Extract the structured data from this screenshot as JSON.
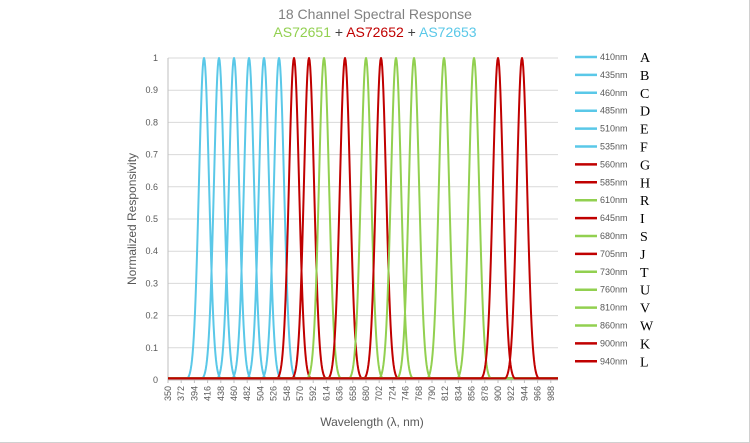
{
  "chart_data": {
    "type": "line",
    "title": "18 Channel Spectral Response",
    "subtitle": {
      "part1": "AS72651",
      "sep1": " + ",
      "part2": "AS72652",
      "sep2": " + ",
      "part3": "AS72653",
      "colors": {
        "part1": "#92d050",
        "sep": "#404040",
        "part2": "#c00000",
        "part3": "#5ac8e8"
      }
    },
    "xlabel": "Wavelength (λ, nm)",
    "ylabel": "Normalized Responsivity",
    "xlim": [
      350,
      1000
    ],
    "ylim": [
      0,
      1
    ],
    "x_ticks": [
      350,
      372,
      394,
      416,
      438,
      460,
      482,
      504,
      526,
      548,
      570,
      592,
      614,
      636,
      658,
      680,
      702,
      724,
      746,
      768,
      790,
      812,
      834,
      856,
      878,
      900,
      922,
      944,
      966,
      988
    ],
    "y_ticks": [
      "0",
      "0.1",
      "0.2",
      "0.3",
      "0.4",
      "0.5",
      "0.6",
      "0.7",
      "0.8",
      "0.9",
      "1"
    ],
    "grid": "horizontal",
    "legend_position": "right",
    "series": [
      {
        "name": "410nm",
        "letter": "A",
        "center": 410,
        "peak": 1.0,
        "fwhm": 20,
        "color": "#5ac8e8"
      },
      {
        "name": "435nm",
        "letter": "B",
        "center": 435,
        "peak": 1.0,
        "fwhm": 20,
        "color": "#5ac8e8"
      },
      {
        "name": "460nm",
        "letter": "C",
        "center": 460,
        "peak": 1.0,
        "fwhm": 20,
        "color": "#5ac8e8"
      },
      {
        "name": "485nm",
        "letter": "D",
        "center": 485,
        "peak": 1.0,
        "fwhm": 20,
        "color": "#5ac8e8"
      },
      {
        "name": "510nm",
        "letter": "E",
        "center": 510,
        "peak": 1.0,
        "fwhm": 20,
        "color": "#5ac8e8"
      },
      {
        "name": "535nm",
        "letter": "F",
        "center": 535,
        "peak": 1.0,
        "fwhm": 20,
        "color": "#5ac8e8"
      },
      {
        "name": "560nm",
        "letter": "G",
        "center": 560,
        "peak": 1.0,
        "fwhm": 20,
        "color": "#c00000"
      },
      {
        "name": "585nm",
        "letter": "H",
        "center": 585,
        "peak": 1.0,
        "fwhm": 20,
        "color": "#c00000"
      },
      {
        "name": "610nm",
        "letter": "R",
        "center": 610,
        "peak": 1.0,
        "fwhm": 20,
        "color": "#92d050"
      },
      {
        "name": "645nm",
        "letter": "I",
        "center": 645,
        "peak": 1.0,
        "fwhm": 20,
        "color": "#c00000"
      },
      {
        "name": "680nm",
        "letter": "S",
        "center": 680,
        "peak": 1.0,
        "fwhm": 20,
        "color": "#92d050"
      },
      {
        "name": "705nm",
        "letter": "J",
        "center": 705,
        "peak": 1.0,
        "fwhm": 20,
        "color": "#c00000"
      },
      {
        "name": "730nm",
        "letter": "T",
        "center": 730,
        "peak": 1.0,
        "fwhm": 20,
        "color": "#92d050"
      },
      {
        "name": "760nm",
        "letter": "U",
        "center": 760,
        "peak": 1.0,
        "fwhm": 20,
        "color": "#92d050"
      },
      {
        "name": "810nm",
        "letter": "V",
        "center": 810,
        "peak": 1.0,
        "fwhm": 20,
        "color": "#92d050"
      },
      {
        "name": "860nm",
        "letter": "W",
        "center": 860,
        "peak": 1.0,
        "fwhm": 20,
        "color": "#92d050"
      },
      {
        "name": "900nm",
        "letter": "K",
        "center": 900,
        "peak": 1.0,
        "fwhm": 20,
        "color": "#c00000"
      },
      {
        "name": "940nm",
        "letter": "L",
        "center": 940,
        "peak": 1.0,
        "fwhm": 20,
        "color": "#c00000"
      }
    ]
  }
}
